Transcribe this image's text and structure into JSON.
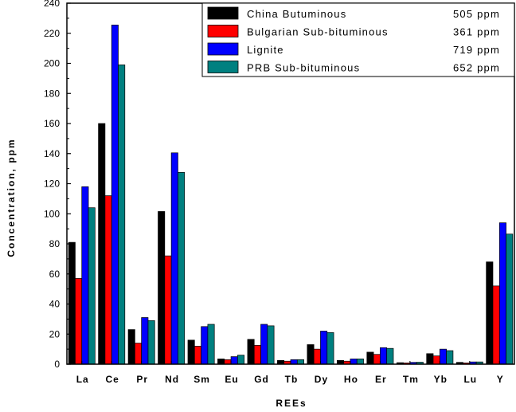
{
  "chart_data": {
    "type": "bar",
    "categories": [
      "La",
      "Ce",
      "Pr",
      "Nd",
      "Sm",
      "Eu",
      "Gd",
      "Tb",
      "Dy",
      "Ho",
      "Er",
      "Tm",
      "Yb",
      "Lu",
      "Y"
    ],
    "series": [
      {
        "name": "China Butuminous",
        "total": "505 ppm",
        "color": "#000000",
        "values": [
          81,
          160,
          23,
          101.5,
          16,
          3.5,
          16.5,
          2.5,
          13,
          2.5,
          8,
          1,
          7,
          1.2,
          68
        ]
      },
      {
        "name": "Bulgarian Sub-bituminous",
        "total": "361 ppm",
        "color": "#ff0000",
        "values": [
          57,
          112,
          14,
          72,
          12,
          3,
          12.5,
          2,
          10,
          2,
          6.5,
          0.8,
          5.5,
          0.8,
          52
        ]
      },
      {
        "name": "Lignite",
        "total": "719 ppm",
        "color": "#0000ff",
        "values": [
          118,
          225.5,
          31,
          140.5,
          25,
          5,
          26.5,
          3,
          22,
          3.5,
          11,
          1.2,
          10,
          1.5,
          94
        ]
      },
      {
        "name": "PRB Sub-bituminous",
        "total": "652 ppm",
        "color": "#008080",
        "values": [
          104,
          199,
          29,
          127.5,
          26.5,
          6,
          25.5,
          3,
          21,
          3.5,
          10.5,
          1.3,
          9,
          1.5,
          86.5
        ]
      }
    ],
    "xlabel": "REEs",
    "ylabel": "Concentration, ppm",
    "ylim": [
      0,
      240
    ],
    "yticks": [
      "0",
      "20",
      "40",
      "60",
      "80",
      "100",
      "120",
      "140",
      "160",
      "180",
      "200",
      "220",
      "240"
    ],
    "grid": false,
    "legend_placement": "top-right"
  }
}
